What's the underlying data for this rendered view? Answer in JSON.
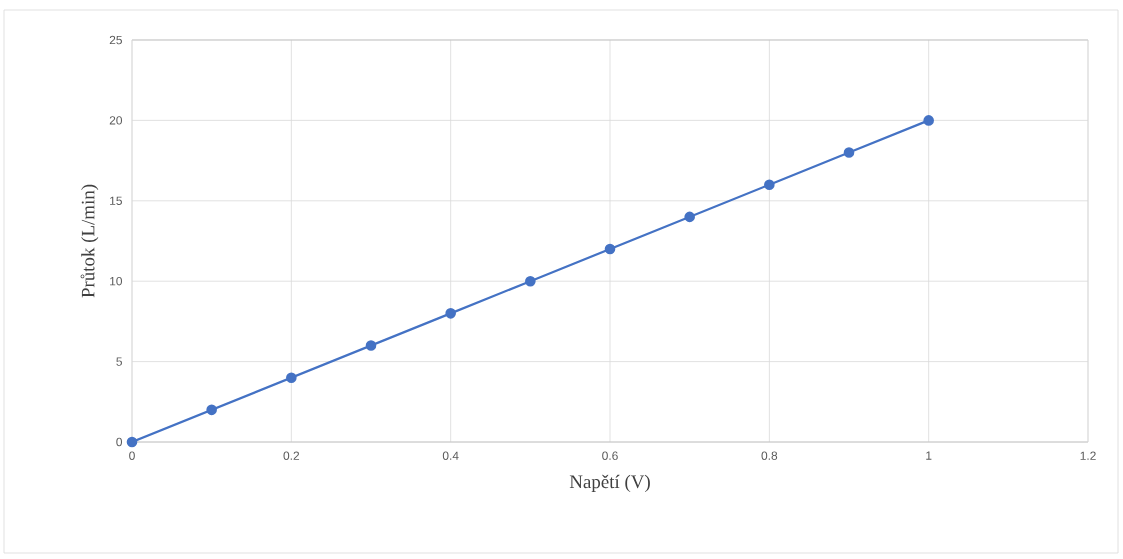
{
  "chart_data": {
    "type": "line",
    "xlabel": "Napětí (V)",
    "ylabel": "Průtok (L/min)",
    "x": [
      0,
      0.1,
      0.2,
      0.3,
      0.4,
      0.5,
      0.6,
      0.7,
      0.8,
      0.9,
      1
    ],
    "series": [
      {
        "color": "#4472c4",
        "values": [
          0,
          2,
          4,
          6,
          8,
          10,
          12,
          14,
          16,
          18,
          20
        ]
      }
    ],
    "xlim": [
      0,
      1.2
    ],
    "ylim": [
      0,
      25
    ],
    "xticks": [
      0,
      0.2,
      0.4,
      0.6,
      0.8,
      1,
      1.2
    ],
    "yticks": [
      0,
      5,
      10,
      15,
      20,
      25
    ],
    "grid": true,
    "marker": "circle",
    "line_style": "solid"
  }
}
